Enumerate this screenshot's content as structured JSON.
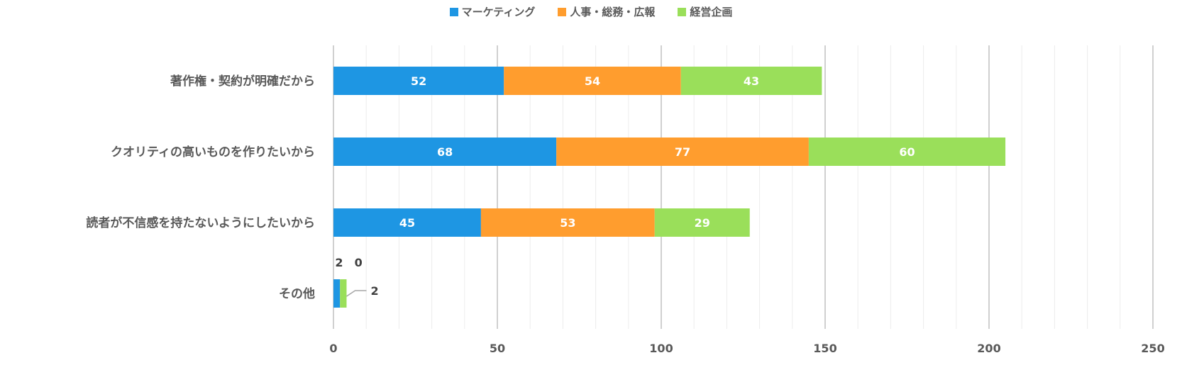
{
  "chart_data": {
    "type": "bar",
    "orientation": "horizontal",
    "stacked": true,
    "categories": [
      "著作権・契約が明確だから",
      "クオリティの高いものを作りたいから",
      "読者が不信感を持たないようにしたいから",
      "その他"
    ],
    "series": [
      {
        "name": "マーケティング",
        "color": "#1E96E3",
        "values": [
          52,
          68,
          45,
          2
        ]
      },
      {
        "name": "人事・総務・広報",
        "color": "#FF9D2E",
        "values": [
          54,
          77,
          53,
          0
        ]
      },
      {
        "name": "経営企画",
        "color": "#9ADF5A",
        "values": [
          43,
          60,
          29,
          2
        ]
      }
    ],
    "xlim": [
      0,
      250
    ],
    "x_ticks": [
      0,
      50,
      100,
      150,
      200,
      250
    ],
    "minor_gridlines_every": 10,
    "legend_position": "top-center",
    "grid": true
  }
}
